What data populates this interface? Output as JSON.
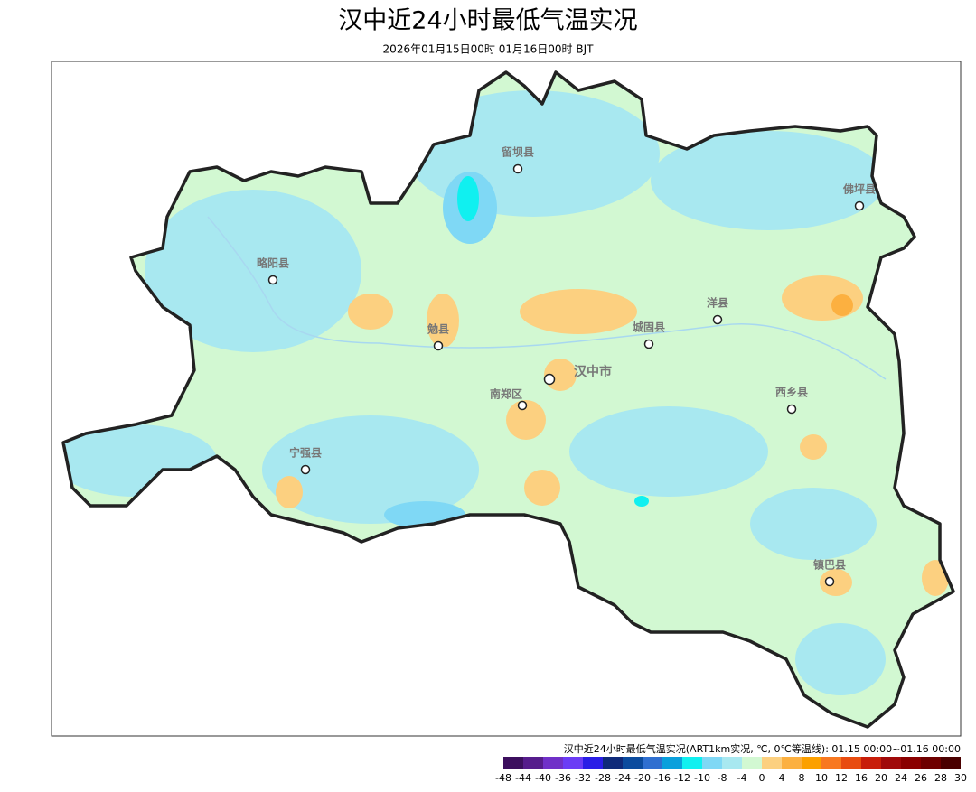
{
  "header": {
    "title": "汉中近24小时最低气温实况",
    "subtitle": "2026年01月15日00时 01月16日00时 BJT"
  },
  "places": [
    "留坝县",
    "佛坪县",
    "略阳县",
    "洋县",
    "勉县",
    "城固县",
    "汉中市",
    "南郑区",
    "西乡县",
    "宁强县",
    "镇巴县"
  ],
  "legend": {
    "title": "汉中近24小时最低气温实况(ART1km实况, ℃, 0℃等温线): 01.15 00:00~01.16 00:00",
    "colors": [
      "#3c0f5e",
      "#561c8c",
      "#7030c8",
      "#6b3cf5",
      "#2a1ee6",
      "#0f2a7a",
      "#0b4b9e",
      "#2f6fd0",
      "#0aa0dc",
      "#10f0f0",
      "#7fd8f5",
      "#a8e8f0",
      "#d2f8d2",
      "#fcd080",
      "#fcb040",
      "#fca000",
      "#f87820",
      "#e84c10",
      "#c81e0a",
      "#a00a0a",
      "#8a0000",
      "#6e0000",
      "#4a0000"
    ],
    "labels": [
      "-48",
      "-44",
      "-40",
      "-36",
      "-32",
      "-28",
      "-24",
      "-20",
      "-16",
      "-12",
      "-10",
      "-8",
      "-4",
      "0",
      "4",
      "8",
      "10",
      "12",
      "16",
      "20",
      "24",
      "26",
      "28",
      "30"
    ]
  }
}
